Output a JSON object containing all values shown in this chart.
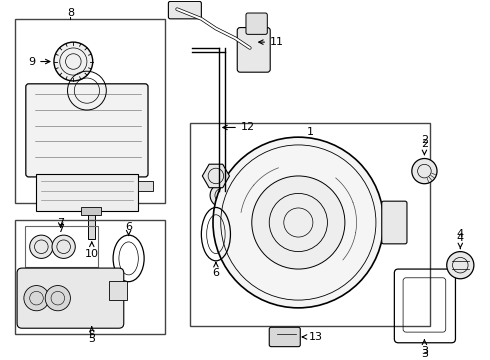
{
  "title": "",
  "bg_color": "#ffffff",
  "line_color": "#000000",
  "fig_width": 4.9,
  "fig_height": 3.6,
  "dpi": 100
}
